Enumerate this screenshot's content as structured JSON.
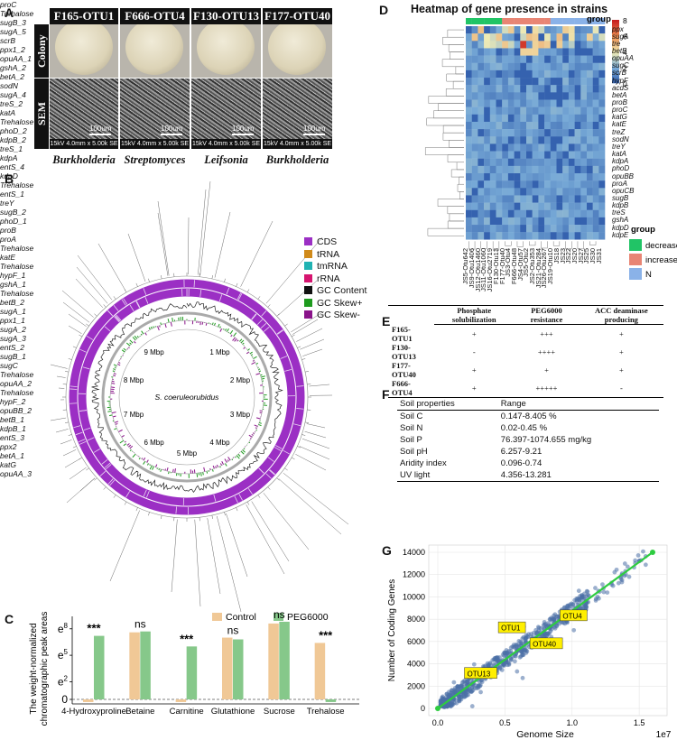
{
  "panels": {
    "A": "A",
    "B": "B",
    "C": "C",
    "D": "D",
    "E": "E",
    "F": "F",
    "G": "G"
  },
  "panelA": {
    "strains": [
      "F165-OTU1",
      "F666-OTU4",
      "F130-OTU13",
      "F177-OTU40"
    ],
    "row_colony": "Colony",
    "row_sem": "SEM",
    "scale": "100um",
    "sem_info": "15kV 4.0mm x 5.00k SE",
    "genera": [
      "Burkholderia",
      "Streptomyces",
      "Leifsonia",
      "Burkholderia"
    ]
  },
  "panelB": {
    "center": "S. coeruleorubidus",
    "ticks": [
      "1 Mbp",
      "2 Mbp",
      "3 Mbp",
      "4 Mbp",
      "5 Mbp",
      "6 Mbp",
      "7 Mbp",
      "8 Mbp",
      "9 Mbp"
    ],
    "legend": [
      {
        "label": "CDS",
        "color": "#9b2fc4"
      },
      {
        "label": "tRNA",
        "color": "#d08a1a"
      },
      {
        "label": "tmRNA",
        "color": "#20b2b2"
      },
      {
        "label": "rRNA",
        "color": "#d6146f"
      },
      {
        "label": "GC Content",
        "color": "#111111"
      },
      {
        "label": "GC Skew+",
        "color": "#1e9b1e"
      },
      {
        "label": "GC Skew-",
        "color": "#8a138a"
      }
    ],
    "genes": [
      {
        "t": "proC",
        "x": 221,
        "y": 205
      },
      {
        "t": "Trehalose",
        "x": 216,
        "y": 214
      },
      {
        "t": "sugB_3",
        "x": 163,
        "y": 227
      },
      {
        "t": "sugA_5",
        "x": 163,
        "y": 240
      },
      {
        "t": "scrB",
        "x": 197,
        "y": 245
      },
      {
        "t": "ppx1_2",
        "x": 243,
        "y": 239
      },
      {
        "t": "opuAA_1",
        "x": 290,
        "y": 249
      },
      {
        "t": "gshA_2",
        "x": 130,
        "y": 263
      },
      {
        "t": "betA_2",
        "x": 97,
        "y": 274
      },
      {
        "t": "sodN",
        "x": 345,
        "y": 267
      },
      {
        "t": "sugA_4",
        "x": 74,
        "y": 287
      },
      {
        "t": "treS_2",
        "x": 73,
        "y": 300
      },
      {
        "t": "katA",
        "x": 72,
        "y": 313
      },
      {
        "t": "Trehalose",
        "x": 339,
        "y": 315
      },
      {
        "t": "phoD_2",
        "x": 57,
        "y": 326
      },
      {
        "t": "kdpB_2",
        "x": 58,
        "y": 339
      },
      {
        "t": "treS_1",
        "x": 64,
        "y": 352
      },
      {
        "t": "kdpA",
        "x": 347,
        "y": 349
      },
      {
        "t": "entS_4",
        "x": 64,
        "y": 365
      },
      {
        "t": "kdpD",
        "x": 340,
        "y": 358
      },
      {
        "t": "Trehalose",
        "x": 345,
        "y": 368
      },
      {
        "t": "entS_1",
        "x": 347,
        "y": 380
      },
      {
        "t": "treY",
        "x": 345,
        "y": 391
      },
      {
        "t": "sugB_2",
        "x": 44,
        "y": 408
      },
      {
        "t": "phoD_1",
        "x": 51,
        "y": 421
      },
      {
        "t": "proB",
        "x": 53,
        "y": 434
      },
      {
        "t": "proA",
        "x": 55,
        "y": 447
      },
      {
        "t": "Trehalose",
        "x": 353,
        "y": 430
      },
      {
        "t": "katE",
        "x": 356,
        "y": 442
      },
      {
        "t": "Trehalose",
        "x": 44,
        "y": 470
      },
      {
        "t": "hypF_1",
        "x": 348,
        "y": 478
      },
      {
        "t": "gshA_1",
        "x": 50,
        "y": 483
      },
      {
        "t": "Trehalose",
        "x": 349,
        "y": 489
      },
      {
        "t": "betB_2",
        "x": 55,
        "y": 496
      },
      {
        "t": "sugA_1",
        "x": 353,
        "y": 501
      },
      {
        "t": "ppx1_1",
        "x": 58,
        "y": 509
      },
      {
        "t": "sugA_2",
        "x": 353,
        "y": 513
      },
      {
        "t": "sugA_3",
        "x": 60,
        "y": 522
      },
      {
        "t": "entS_2",
        "x": 349,
        "y": 525
      },
      {
        "t": "sugB_1",
        "x": 65,
        "y": 535
      },
      {
        "t": "sugC",
        "x": 77,
        "y": 548
      },
      {
        "t": "Trehalose",
        "x": 62,
        "y": 561
      },
      {
        "t": "opuAA_2",
        "x": 374,
        "y": 585
      },
      {
        "t": "Trehalose",
        "x": 366,
        "y": 596
      },
      {
        "t": "hypF_2",
        "x": 330,
        "y": 613
      },
      {
        "t": "opuBB_2",
        "x": 308,
        "y": 626
      },
      {
        "t": "betB_1",
        "x": 303,
        "y": 640
      },
      {
        "t": "kdpB_1",
        "x": 262,
        "y": 643
      },
      {
        "t": "entS_3",
        "x": 110,
        "y": 648
      },
      {
        "t": "ppx2",
        "x": 178,
        "y": 660
      },
      {
        "t": "betA_1",
        "x": 232,
        "y": 662
      },
      {
        "t": "katG",
        "x": 210,
        "y": 676
      },
      {
        "t": "opuAA_3",
        "x": 255,
        "y": 682
      }
    ]
  },
  "panelC": {
    "legend": [
      {
        "label": "Control",
        "color": "#f0c896"
      },
      {
        "label": "PEG6000",
        "color": "#86c88a"
      }
    ],
    "ylabel_1": "The weight-normalized",
    "ylabel_2": "chromatographic peak areas",
    "yticks": [
      {
        "base": "e",
        "exp": "8",
        "v": 8
      },
      {
        "base": "e",
        "exp": "5",
        "v": 5
      },
      {
        "base": "e",
        "exp": "2",
        "v": 2
      },
      {
        "base": "",
        "exp": "",
        "v": 0
      }
    ],
    "ytick_0": "0"
  },
  "chart_data": [
    {
      "type": "bar",
      "title": "",
      "ylabel": "The weight-normalized chromatographic peak areas",
      "ylim": [
        -0.4,
        9
      ],
      "categories": [
        "4-Hydroxyproline",
        "Betaine",
        "Carnitine",
        "Glutathione",
        "Sucrose",
        "Trehalose"
      ],
      "series": [
        {
          "name": "Control",
          "values": [
            -0.3,
            7.6,
            -0.3,
            7.0,
            8.6,
            6.4
          ]
        },
        {
          "name": "PEG6000",
          "values": [
            7.2,
            7.7,
            6.0,
            6.8,
            8.8,
            -0.3
          ]
        }
      ],
      "significance": [
        "***",
        "ns",
        "***",
        "ns",
        "ns",
        "***"
      ]
    },
    {
      "type": "scatter",
      "title": "",
      "xlabel": "Genome Size",
      "ylabel": "Number of Coding Genes",
      "x_multiplier": "1e7",
      "xlim": [
        0,
        1.6
      ],
      "ylim": [
        0,
        14000
      ],
      "xticks": [
        "0.0",
        "0.5",
        "1.0",
        "1.5"
      ],
      "yticks": [
        "0",
        "2000",
        "4000",
        "6000",
        "8000",
        "10000",
        "12000",
        "14000"
      ],
      "fit_line": [
        [
          0.0,
          0
        ],
        [
          1.6,
          14000
        ]
      ],
      "highlighted": [
        {
          "label": "OTU1",
          "x": 0.72,
          "y": 6300
        },
        {
          "label": "OTU4",
          "x": 0.87,
          "y": 7700
        },
        {
          "label": "OTU40",
          "x": 0.7,
          "y": 6000
        },
        {
          "label": "OTU13",
          "x": 0.4,
          "y": 3500
        }
      ]
    },
    {
      "type": "heatmap",
      "title": "Heatmap of gene presence in strains",
      "colorbar_ticks": [
        "8",
        "6",
        "4",
        "2",
        "0"
      ],
      "rows": [
        "ppx",
        "sugA",
        "tre",
        "betB",
        "opuAA",
        "sugC",
        "scrB",
        "hypF",
        "acdS",
        "betA",
        "proB",
        "proC",
        "katG",
        "katE",
        "treZ",
        "sodN",
        "treY",
        "katA",
        "kdpA",
        "phoD",
        "opuBB",
        "proA",
        "opuCB",
        "sugB",
        "kdpB",
        "treS",
        "gshA",
        "kdpD",
        "kdpE"
      ],
      "columns": [
        "JS5-Otu642",
        "JS9-Otu1406",
        "JS12-Otu1460",
        "JS11-Otu1060",
        "JS16-Otu2719",
        "F130-Otu13",
        "F177-Otu40",
        "JS3-Otu4",
        "F666-Otu48",
        "JS4-Otu57",
        "JS5-Otu2",
        "JS2-Otu353",
        "JS21-Otu284",
        "JS26-Otu267",
        "JS19-Otu10",
        "JS18",
        "JS23",
        "JS22",
        "JS20",
        "JS27",
        "JS25",
        "JS30",
        "JS31"
      ]
    }
  ],
  "panelD": {
    "title": "Heatmap of gene presence in strains",
    "group_label": "group",
    "colorbar": [
      "8",
      "6",
      "4",
      "2",
      "0"
    ],
    "group_legend_title": "group",
    "groups": [
      {
        "label": "decrease",
        "color": "#21c466"
      },
      {
        "label": "increase",
        "color": "#e88574"
      },
      {
        "label": "N",
        "color": "#8ab2e8"
      }
    ]
  },
  "panelE": {
    "headers": [
      "Phosphate solubilization",
      "PEG6000 resistance",
      "ACC deaminase producing"
    ],
    "rows": [
      {
        "strain": "F165-OTU1",
        "c": [
          "+",
          "+++",
          "+"
        ]
      },
      {
        "strain": "F130-OTU13",
        "c": [
          "-",
          "++++",
          "+"
        ]
      },
      {
        "strain": "F177-OTU40",
        "c": [
          "+",
          "+",
          "+"
        ]
      },
      {
        "strain": "F666-OTU4",
        "c": [
          "+",
          "+++++",
          "-"
        ]
      }
    ]
  },
  "panelF": {
    "header": [
      "Soil properties",
      "Range"
    ],
    "rows": [
      [
        "Soil C",
        "0.147-8.405 %"
      ],
      [
        "Soil N",
        "0.02-0.45 %"
      ],
      [
        "Soil P",
        "76.397-1074.655 mg/kg"
      ],
      [
        "Soil pH",
        "6.257-9.21"
      ],
      [
        "Aridity index",
        "0.096-0.74"
      ],
      [
        "UV light",
        "4.356-13.281"
      ]
    ]
  }
}
